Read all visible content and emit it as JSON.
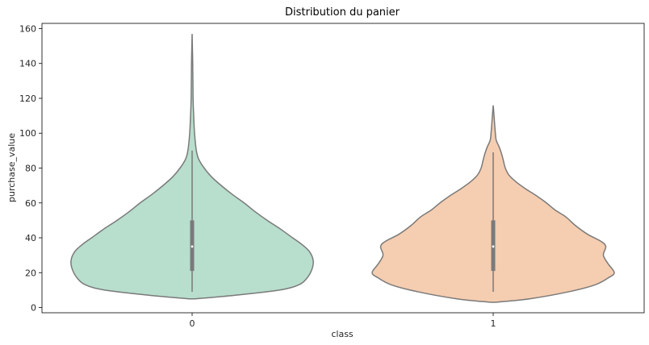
{
  "chart_data": {
    "type": "violin",
    "title": "Distribution du panier",
    "xlabel": "class",
    "ylabel": "purchase_value",
    "categories": [
      "0",
      "1"
    ],
    "ylim": [
      -3,
      163
    ],
    "yticks": [
      0,
      20,
      40,
      60,
      80,
      100,
      120,
      140,
      160
    ],
    "grid": false,
    "colors": [
      "#b8decd",
      "#f5cdb0"
    ],
    "edge_color": "#7a7a7a",
    "violins": [
      {
        "category": "0",
        "min": 9,
        "q1": 21,
        "median": 35,
        "q3": 50,
        "max": 90,
        "kde_extent": [
          5,
          157
        ],
        "kde_profile": [
          {
            "y": 5,
            "w": 0.03
          },
          {
            "y": 7,
            "w": 0.35
          },
          {
            "y": 10,
            "w": 0.72
          },
          {
            "y": 13,
            "w": 0.88
          },
          {
            "y": 17,
            "w": 0.95
          },
          {
            "y": 22,
            "w": 0.99
          },
          {
            "y": 27,
            "w": 1.0
          },
          {
            "y": 32,
            "w": 0.97
          },
          {
            "y": 36,
            "w": 0.91
          },
          {
            "y": 40,
            "w": 0.83
          },
          {
            "y": 45,
            "w": 0.73
          },
          {
            "y": 50,
            "w": 0.62
          },
          {
            "y": 55,
            "w": 0.52
          },
          {
            "y": 60,
            "w": 0.43
          },
          {
            "y": 65,
            "w": 0.33
          },
          {
            "y": 70,
            "w": 0.24
          },
          {
            "y": 75,
            "w": 0.16
          },
          {
            "y": 80,
            "w": 0.1
          },
          {
            "y": 85,
            "w": 0.055
          },
          {
            "y": 90,
            "w": 0.035
          },
          {
            "y": 100,
            "w": 0.02
          },
          {
            "y": 110,
            "w": 0.013
          },
          {
            "y": 120,
            "w": 0.008
          },
          {
            "y": 140,
            "w": 0.005
          },
          {
            "y": 157,
            "w": 0.0
          }
        ]
      },
      {
        "category": "1",
        "min": 9,
        "q1": 21,
        "median": 35,
        "q3": 50,
        "max": 89,
        "kde_extent": [
          3,
          116
        ],
        "kde_profile": [
          {
            "y": 3,
            "w": 0.02
          },
          {
            "y": 5,
            "w": 0.3
          },
          {
            "y": 9,
            "w": 0.62
          },
          {
            "y": 13,
            "w": 0.84
          },
          {
            "y": 17,
            "w": 0.95
          },
          {
            "y": 20,
            "w": 1.0
          },
          {
            "y": 25,
            "w": 0.95
          },
          {
            "y": 30,
            "w": 0.91
          },
          {
            "y": 35,
            "w": 0.93
          },
          {
            "y": 38,
            "w": 0.89
          },
          {
            "y": 42,
            "w": 0.78
          },
          {
            "y": 47,
            "w": 0.68
          },
          {
            "y": 52,
            "w": 0.6
          },
          {
            "y": 56,
            "w": 0.51
          },
          {
            "y": 60,
            "w": 0.44
          },
          {
            "y": 64,
            "w": 0.36
          },
          {
            "y": 68,
            "w": 0.27
          },
          {
            "y": 72,
            "w": 0.19
          },
          {
            "y": 76,
            "w": 0.13
          },
          {
            "y": 80,
            "w": 0.1
          },
          {
            "y": 84,
            "w": 0.085
          },
          {
            "y": 88,
            "w": 0.07
          },
          {
            "y": 92,
            "w": 0.05
          },
          {
            "y": 96,
            "w": 0.025
          },
          {
            "y": 100,
            "w": 0.018
          },
          {
            "y": 105,
            "w": 0.012
          },
          {
            "y": 110,
            "w": 0.007
          },
          {
            "y": 116,
            "w": 0.0
          }
        ]
      }
    ]
  }
}
